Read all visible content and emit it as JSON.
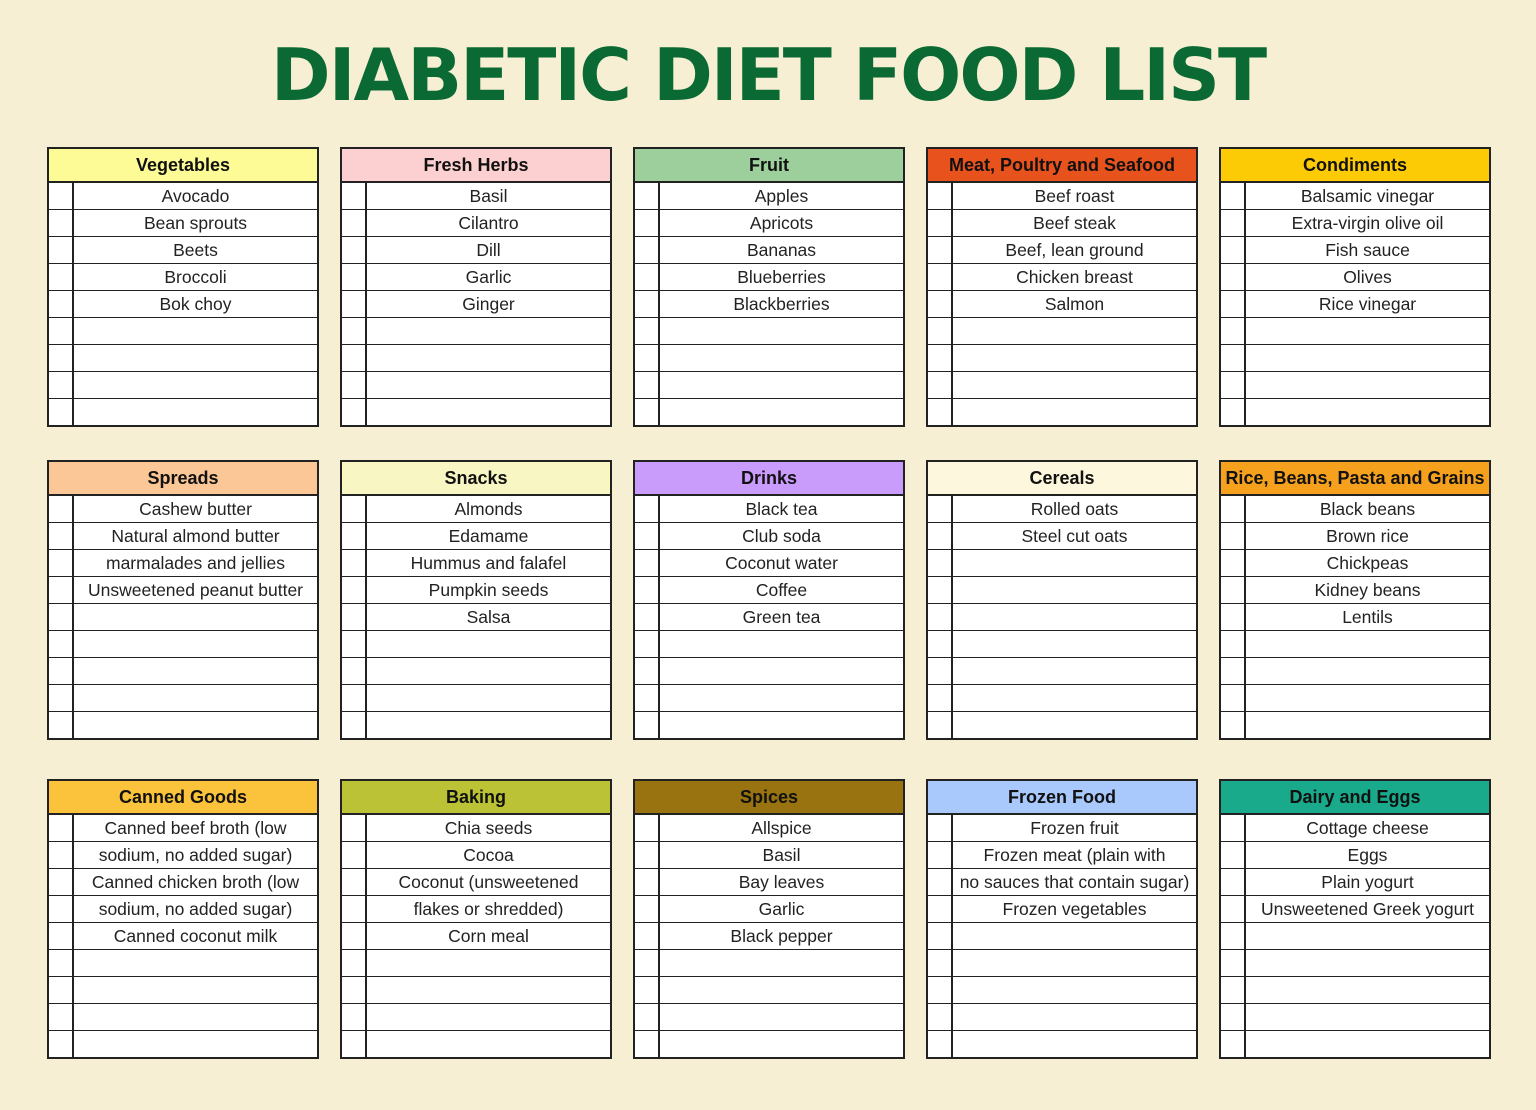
{
  "title": "DIABETIC DIET FOOD LIST",
  "categories": [
    {
      "name": "Vegetables",
      "color": "#fdfb96",
      "text_color": "#111111",
      "items": [
        "Avocado",
        "Bean sprouts",
        "Beets",
        "Broccoli",
        "Bok choy",
        "",
        "",
        "",
        ""
      ]
    },
    {
      "name": "Fresh Herbs",
      "color": "#fccfd0",
      "text_color": "#111111",
      "items": [
        "Basil",
        "Cilantro",
        "Dill",
        "Garlic",
        "Ginger",
        "",
        "",
        "",
        ""
      ]
    },
    {
      "name": "Fruit",
      "color": "#9ccf9b",
      "text_color": "#111111",
      "items": [
        "Apples",
        "Apricots",
        "Bananas",
        "Blueberries",
        "Blackberries",
        "",
        "",
        "",
        ""
      ]
    },
    {
      "name": "Meat, Poultry and Seafood",
      "color": "#e8521d",
      "text_color": "#111111",
      "items": [
        "Beef roast",
        "Beef steak",
        "Beef, lean ground",
        "Chicken breast",
        "Salmon",
        "",
        "",
        "",
        ""
      ]
    },
    {
      "name": "Condiments",
      "color": "#fccb06",
      "text_color": "#111111",
      "items": [
        "Balsamic vinegar",
        "Extra-virgin olive oil",
        "Fish sauce",
        "Olives",
        "Rice vinegar",
        "",
        "",
        "",
        ""
      ]
    },
    {
      "name": "Spreads",
      "color": "#fbc796",
      "text_color": "#111111",
      "items": [
        "Cashew butter",
        "Natural almond butter",
        "marmalades and jellies",
        "Unsweetened peanut butter",
        "",
        "",
        "",
        "",
        ""
      ]
    },
    {
      "name": "Snacks",
      "color": "#f8f6c2",
      "text_color": "#111111",
      "items": [
        "Almonds",
        "Edamame",
        "Hummus and falafel",
        "Pumpkin seeds",
        "Salsa",
        "",
        "",
        "",
        ""
      ]
    },
    {
      "name": "Drinks",
      "color": "#c99bfb",
      "text_color": "#111111",
      "items": [
        "Black tea",
        "Club soda",
        "Coconut water",
        "Coffee",
        "Green tea",
        "",
        "",
        "",
        ""
      ]
    },
    {
      "name": "Cereals",
      "color": "#fdf8dd",
      "text_color": "#111111",
      "items": [
        "Rolled oats",
        "Steel cut oats",
        "",
        "",
        "",
        "",
        "",
        "",
        ""
      ]
    },
    {
      "name": "Rice, Beans, Pasta and Grains",
      "color": "#f6a11d",
      "text_color": "#111111",
      "items": [
        "Black beans",
        "Brown rice",
        "Chickpeas",
        "Kidney beans",
        "Lentils",
        "",
        "",
        "",
        ""
      ]
    },
    {
      "name": "Canned Goods",
      "color": "#fbc33c",
      "text_color": "#111111",
      "items": [
        "Canned beef broth (low",
        "sodium, no added sugar)",
        "Canned chicken broth (low",
        "sodium, no added sugar)",
        "Canned coconut milk",
        "",
        "",
        "",
        ""
      ]
    },
    {
      "name": "Baking",
      "color": "#bcc235",
      "text_color": "#111111",
      "items": [
        "Chia seeds",
        "Cocoa",
        "Coconut (unsweetened",
        "flakes or shredded)",
        "Corn meal",
        "",
        "",
        "",
        ""
      ]
    },
    {
      "name": "Spices",
      "color": "#98730f",
      "text_color": "#111111",
      "items": [
        "Allspice",
        "Basil",
        "Bay leaves",
        "Garlic",
        "Black pepper",
        "",
        "",
        "",
        ""
      ]
    },
    {
      "name": "Frozen Food",
      "color": "#a9c8fb",
      "text_color": "#111111",
      "items": [
        "Frozen fruit",
        "Frozen meat (plain with",
        "no sauces that contain sugar)",
        "Frozen vegetables",
        "",
        "",
        "",
        "",
        ""
      ]
    },
    {
      "name": "Dairy and Eggs",
      "color": "#19aa8b",
      "text_color": "#111111",
      "items": [
        "Cottage cheese",
        "Eggs",
        "Plain yogurt",
        "Unsweetened Greek yogurt",
        "",
        "",
        "",
        "",
        ""
      ]
    }
  ]
}
